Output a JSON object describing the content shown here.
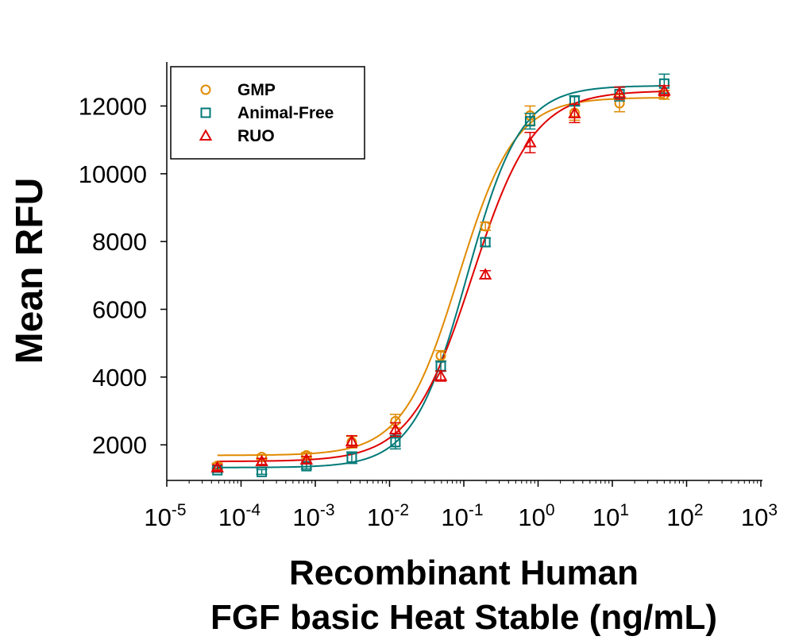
{
  "chart_data": {
    "type": "scatter",
    "title": "",
    "xlabel_line1": "Recombinant Human",
    "xlabel_line2": "FGF basic Heat Stable (ng/mL)",
    "ylabel": "Mean RFU",
    "xscale": "log",
    "xlim": [
      1e-05,
      1000
    ],
    "ylim": [
      950,
      13300
    ],
    "grid": false,
    "legend_position": "top-left",
    "x_ticks": [
      {
        "base": "10",
        "exp": "-5",
        "value": 1e-05
      },
      {
        "base": "10",
        "exp": "-4",
        "value": 0.0001
      },
      {
        "base": "10",
        "exp": "-3",
        "value": 0.001
      },
      {
        "base": "10",
        "exp": "-2",
        "value": 0.01
      },
      {
        "base": "10",
        "exp": "-1",
        "value": 0.1
      },
      {
        "base": "10",
        "exp": "0",
        "value": 1
      },
      {
        "base": "10",
        "exp": "1",
        "value": 10
      },
      {
        "base": "10",
        "exp": "2",
        "value": 100
      },
      {
        "base": "10",
        "exp": "3",
        "value": 1000
      }
    ],
    "y_ticks": [
      {
        "label": "2000",
        "value": 2000
      },
      {
        "label": "4000",
        "value": 4000
      },
      {
        "label": "6000",
        "value": 6000
      },
      {
        "label": "8000",
        "value": 8000
      },
      {
        "label": "10000",
        "value": 10000
      },
      {
        "label": "12000",
        "value": 12000
      }
    ],
    "x": [
      4.8e-05,
      0.00019,
      0.00076,
      0.0031,
      0.012,
      0.049,
      0.195,
      0.78,
      3.1,
      12.5,
      50
    ],
    "series": [
      {
        "name": "GMP",
        "marker": "circle",
        "color": "#E08A00",
        "values": [
          1380,
          1640,
          1690,
          2080,
          2700,
          4630,
          8450,
          11720,
          11800,
          12080,
          12330
        ],
        "errors": [
          80,
          70,
          80,
          170,
          200,
          150,
          120,
          280,
          220,
          250,
          130
        ],
        "fit": {
          "bottom": 1690,
          "top": 12250,
          "ec50": 0.085,
          "hill": 1.15
        }
      },
      {
        "name": "Animal-Free",
        "marker": "square",
        "color": "#007A78",
        "values": [
          1250,
          1200,
          1370,
          1620,
          2080,
          4320,
          7980,
          11550,
          12150,
          12350,
          12660
        ],
        "errors": [
          60,
          70,
          80,
          170,
          200,
          150,
          120,
          230,
          150,
          200,
          280
        ],
        "fit": {
          "bottom": 1330,
          "top": 12600,
          "ec50": 0.11,
          "hill": 1.2
        }
      },
      {
        "name": "RUO",
        "marker": "triangle",
        "color": "#E00000",
        "values": [
          1330,
          1510,
          1560,
          2100,
          2450,
          4030,
          7020,
          10920,
          11780,
          12380,
          12450
        ],
        "errors": [
          80,
          90,
          100,
          170,
          200,
          150,
          120,
          300,
          270,
          180,
          150
        ],
        "fit": {
          "bottom": 1510,
          "top": 12450,
          "ec50": 0.13,
          "hill": 1.05
        }
      }
    ]
  }
}
